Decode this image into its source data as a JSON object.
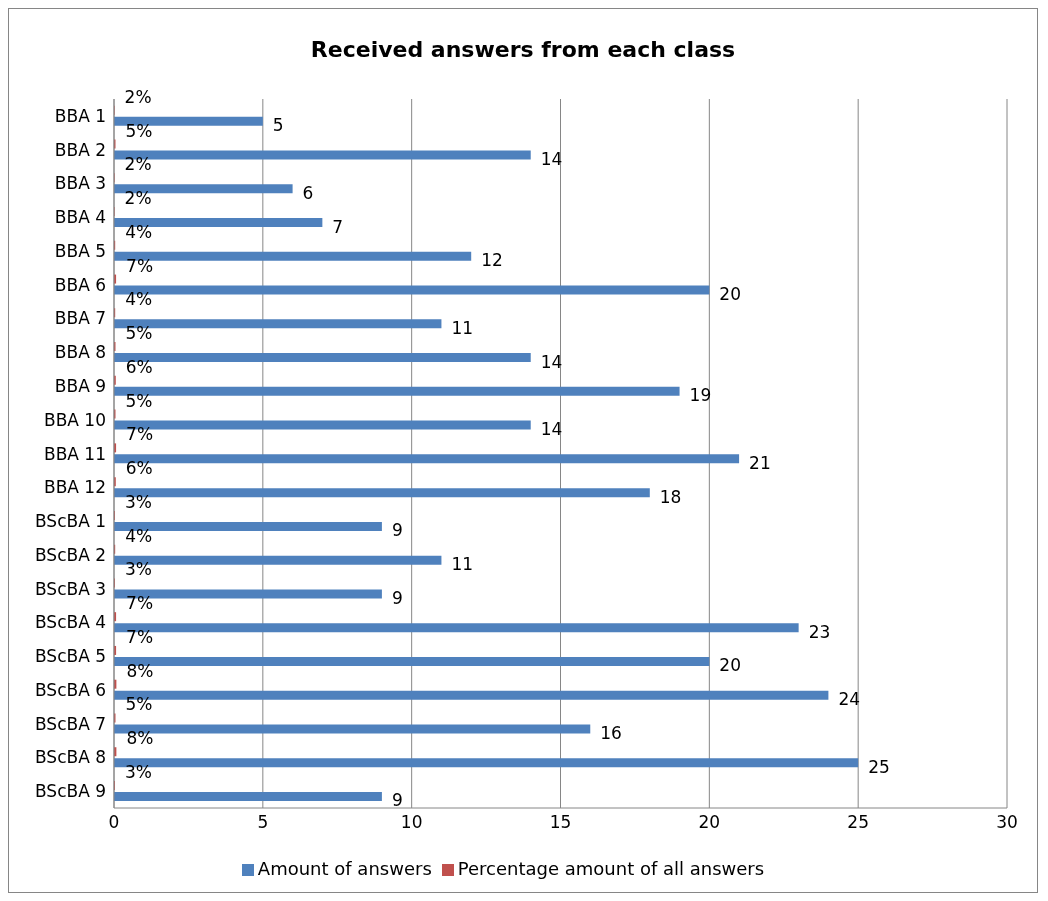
{
  "chart_data": {
    "type": "bar",
    "orientation": "horizontal",
    "title": "Received answers from each class",
    "categories": [
      "BBA 1",
      "BBA 2",
      "BBA 3",
      "BBA 4",
      "BBA 5",
      "BBA 6",
      "BBA 7",
      "BBA 8",
      "BBA 9",
      "BBA 10",
      "BBA 11",
      "BBA 12",
      "BScBA 1",
      "BScBA 2",
      "BScBA 3",
      "BScBA 4",
      "BScBA 5",
      "BScBA 6",
      "BScBA 7",
      "BScBA 8",
      "BScBA 9"
    ],
    "series": [
      {
        "name": "Percentage amount of all answers",
        "color": "#c0504d",
        "values": [
          0.02,
          0.05,
          0.02,
          0.02,
          0.04,
          0.07,
          0.04,
          0.05,
          0.06,
          0.05,
          0.07,
          0.06,
          0.03,
          0.04,
          0.03,
          0.07,
          0.07,
          0.08,
          0.05,
          0.08,
          0.03
        ],
        "value_labels": [
          "2%",
          "5%",
          "2%",
          "2%",
          "4%",
          "7%",
          "4%",
          "5%",
          "6%",
          "5%",
          "7%",
          "6%",
          "3%",
          "4%",
          "3%",
          "7%",
          "7%",
          "8%",
          "5%",
          "8%",
          "3%"
        ]
      },
      {
        "name": "Amount of answers",
        "color": "#4f81bd",
        "values": [
          5,
          14,
          6,
          7,
          12,
          20,
          11,
          14,
          19,
          14,
          21,
          18,
          9,
          11,
          9,
          23,
          20,
          24,
          16,
          25,
          9
        ],
        "value_labels": [
          "5",
          "14",
          "6",
          "7",
          "12",
          "20",
          "11",
          "14",
          "19",
          "14",
          "21",
          "18",
          "9",
          "11",
          "9",
          "23",
          "20",
          "24",
          "16",
          "25",
          "9"
        ]
      }
    ],
    "xlim": [
      0,
      30
    ],
    "xticks": [
      0,
      5,
      10,
      15,
      20,
      25,
      30
    ],
    "grid": "x",
    "legend": "bottom"
  }
}
